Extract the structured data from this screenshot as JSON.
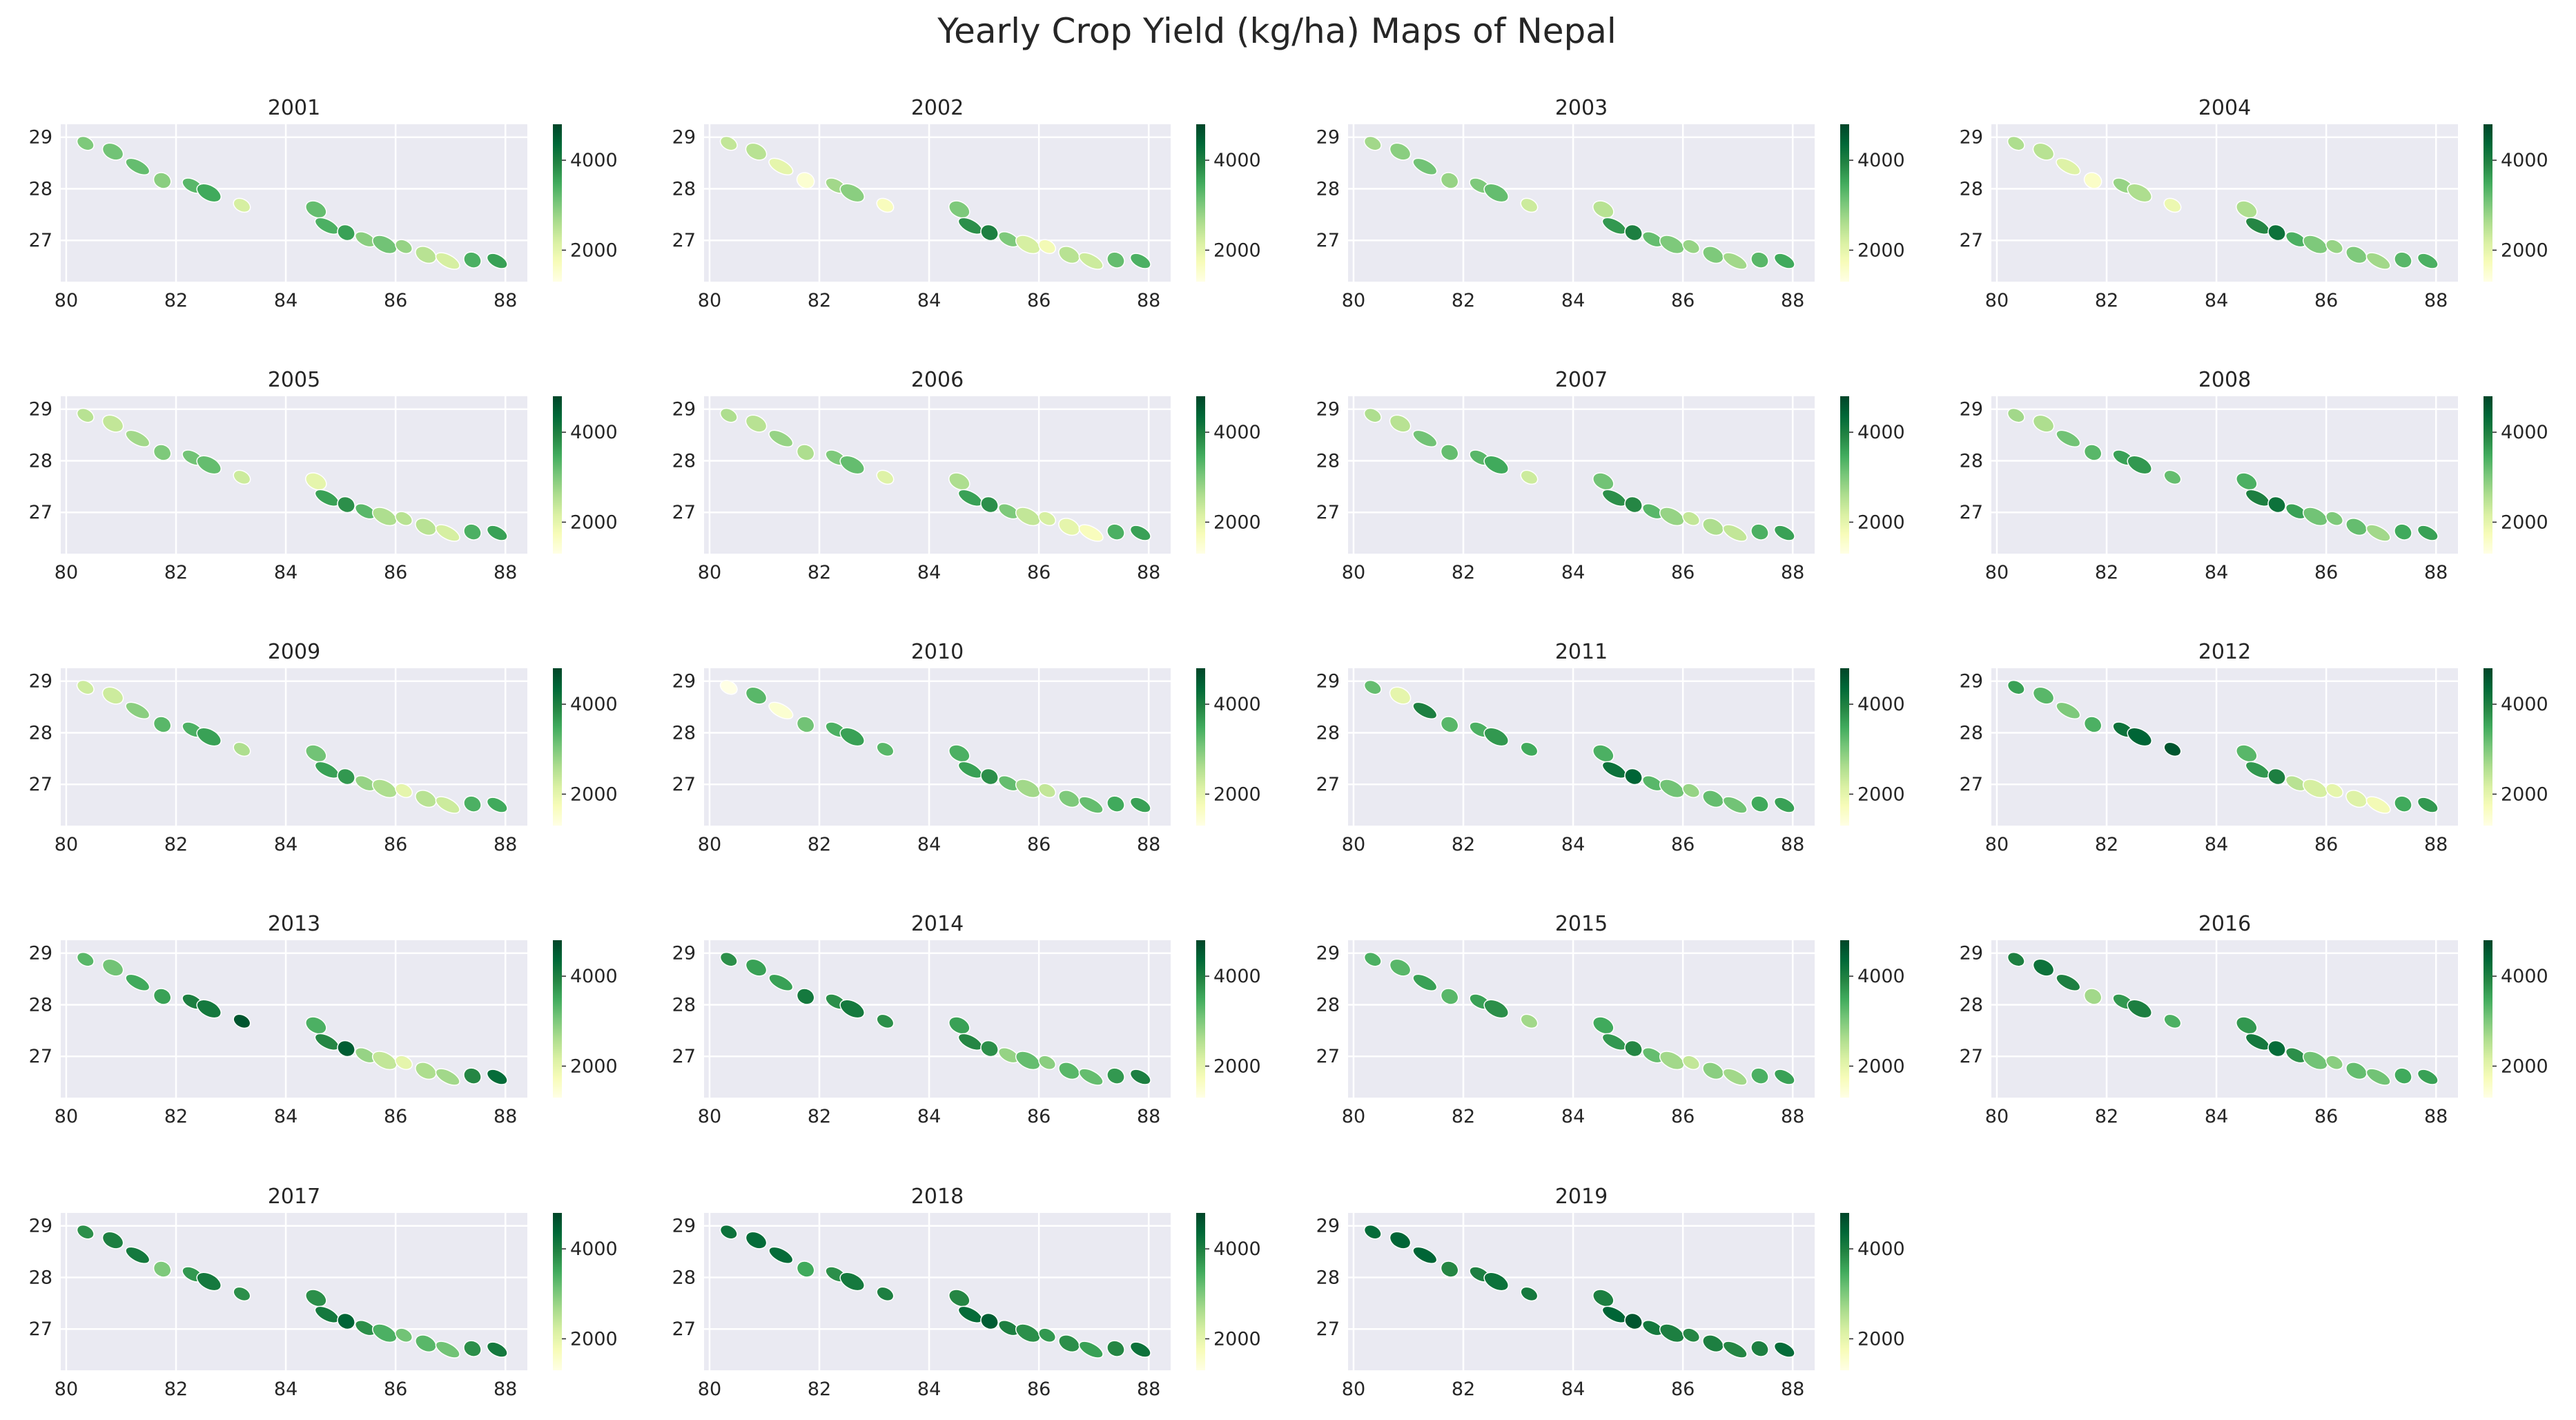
{
  "chart_data": {
    "type": "choropleth-map-grid",
    "title": "Yearly Crop Yield (kg/ha) Maps of Nepal",
    "colormap": "YlGn",
    "colorbar": {
      "range": [
        1300,
        4800
      ],
      "ticks": [
        "2000",
        "4000"
      ]
    },
    "x_ticks": [
      "80",
      "82",
      "84",
      "86",
      "88"
    ],
    "y_ticks": [
      "29",
      "28",
      "27"
    ],
    "xlim": [
      79.9,
      88.4
    ],
    "ylim": [
      26.2,
      29.25
    ],
    "region_centroids": [
      {
        "lon": 80.35,
        "lat": 28.88
      },
      {
        "lon": 80.85,
        "lat": 28.72
      },
      {
        "lon": 81.3,
        "lat": 28.43
      },
      {
        "lon": 81.75,
        "lat": 28.16
      },
      {
        "lon": 82.3,
        "lat": 28.06
      },
      {
        "lon": 82.6,
        "lat": 27.92
      },
      {
        "lon": 83.2,
        "lat": 27.68
      },
      {
        "lon": 84.55,
        "lat": 27.6
      },
      {
        "lon": 84.75,
        "lat": 27.28
      },
      {
        "lon": 85.1,
        "lat": 27.15
      },
      {
        "lon": 85.45,
        "lat": 27.02
      },
      {
        "lon": 85.8,
        "lat": 26.92
      },
      {
        "lon": 86.15,
        "lat": 26.88
      },
      {
        "lon": 86.55,
        "lat": 26.72
      },
      {
        "lon": 86.95,
        "lat": 26.6
      },
      {
        "lon": 87.4,
        "lat": 26.62
      },
      {
        "lon": 87.85,
        "lat": 26.6
      }
    ],
    "panels": [
      {
        "year": "2001",
        "values": [
          3000,
          3100,
          3200,
          2900,
          3300,
          3500,
          2200,
          3200,
          3400,
          3600,
          2900,
          3100,
          2800,
          2500,
          2200,
          3400,
          3600
        ]
      },
      {
        "year": "2002",
        "values": [
          2400,
          2500,
          2000,
          1500,
          2700,
          2900,
          1700,
          3000,
          3800,
          4000,
          3000,
          2200,
          1800,
          2500,
          2300,
          3200,
          3400
        ]
      },
      {
        "year": "2003",
        "values": [
          2700,
          2900,
          3100,
          2800,
          3000,
          3200,
          2300,
          2500,
          3700,
          4000,
          3200,
          3000,
          2800,
          3000,
          2700,
          3300,
          3500
        ]
      },
      {
        "year": "2004",
        "values": [
          2600,
          2500,
          2100,
          1600,
          2800,
          2600,
          1900,
          2600,
          3900,
          4200,
          3400,
          3000,
          2800,
          3000,
          2700,
          3300,
          3400
        ]
      },
      {
        "year": "2005",
        "values": [
          2500,
          2400,
          2700,
          3000,
          3100,
          3200,
          2300,
          2000,
          3600,
          3800,
          3300,
          2600,
          2500,
          2500,
          2200,
          3400,
          3600
        ]
      },
      {
        "year": "2006",
        "values": [
          2600,
          2500,
          2800,
          2600,
          3000,
          3200,
          2100,
          2600,
          3600,
          3800,
          3000,
          2400,
          2200,
          2000,
          1700,
          3400,
          3600
        ]
      },
      {
        "year": "2007",
        "values": [
          2600,
          2500,
          3100,
          3200,
          3300,
          3500,
          2300,
          3100,
          3800,
          3900,
          3300,
          2800,
          2400,
          2600,
          2400,
          3400,
          3600
        ]
      },
      {
        "year": "2008",
        "values": [
          2700,
          2600,
          3100,
          3300,
          3600,
          3700,
          3200,
          3400,
          4000,
          4200,
          3600,
          3100,
          3000,
          3200,
          2700,
          3500,
          3600
        ]
      },
      {
        "year": "2009",
        "values": [
          2300,
          2300,
          2900,
          3300,
          3400,
          3600,
          2600,
          3100,
          3600,
          3700,
          2800,
          2600,
          2000,
          2500,
          2300,
          3400,
          3500
        ]
      },
      {
        "year": "2010",
        "values": [
          1300,
          3300,
          1500,
          3100,
          3400,
          3600,
          3300,
          3400,
          3600,
          3800,
          3200,
          2700,
          2400,
          3000,
          3200,
          3500,
          3600
        ]
      },
      {
        "year": "2011",
        "values": [
          3200,
          2000,
          4000,
          3300,
          3400,
          3700,
          3500,
          3400,
          4200,
          4400,
          3300,
          3100,
          2800,
          3200,
          3100,
          3500,
          3600
        ]
      },
      {
        "year": "2012",
        "values": [
          3600,
          3300,
          3000,
          3400,
          4200,
          4400,
          4600,
          3300,
          3700,
          4000,
          2500,
          2200,
          2000,
          2100,
          1800,
          3500,
          3700
        ]
      },
      {
        "year": "2013",
        "values": [
          3300,
          3100,
          3500,
          3600,
          4000,
          4100,
          4600,
          3400,
          3900,
          4500,
          2800,
          2400,
          2000,
          2600,
          2700,
          3900,
          4300
        ]
      },
      {
        "year": "2014",
        "values": [
          3800,
          3600,
          3600,
          4100,
          3800,
          4100,
          3800,
          3600,
          3900,
          3800,
          2800,
          3200,
          2900,
          3300,
          3200,
          3700,
          4000
        ]
      },
      {
        "year": "2015",
        "values": [
          3400,
          3300,
          3600,
          3300,
          3600,
          3800,
          2700,
          3500,
          3700,
          3900,
          3200,
          2700,
          2400,
          2900,
          2700,
          3400,
          3600
        ]
      },
      {
        "year": "2016",
        "values": [
          4000,
          4200,
          4000,
          2700,
          3700,
          4000,
          3400,
          3700,
          4100,
          4300,
          3800,
          3100,
          2900,
          3200,
          3100,
          3500,
          3600
        ]
      },
      {
        "year": "2017",
        "values": [
          3800,
          4000,
          4100,
          3000,
          3700,
          4100,
          3800,
          3800,
          4100,
          4400,
          3800,
          3400,
          3100,
          3300,
          3100,
          3800,
          4100
        ]
      },
      {
        "year": "2018",
        "values": [
          4200,
          4300,
          4300,
          3500,
          3800,
          4100,
          4000,
          3900,
          4300,
          4500,
          4000,
          3800,
          3700,
          3800,
          3600,
          3900,
          4200
        ]
      },
      {
        "year": "2019",
        "values": [
          4300,
          4400,
          4400,
          3900,
          4000,
          4200,
          4100,
          4000,
          4400,
          4600,
          4100,
          4000,
          3900,
          4000,
          3900,
          4000,
          4300
        ]
      }
    ]
  }
}
